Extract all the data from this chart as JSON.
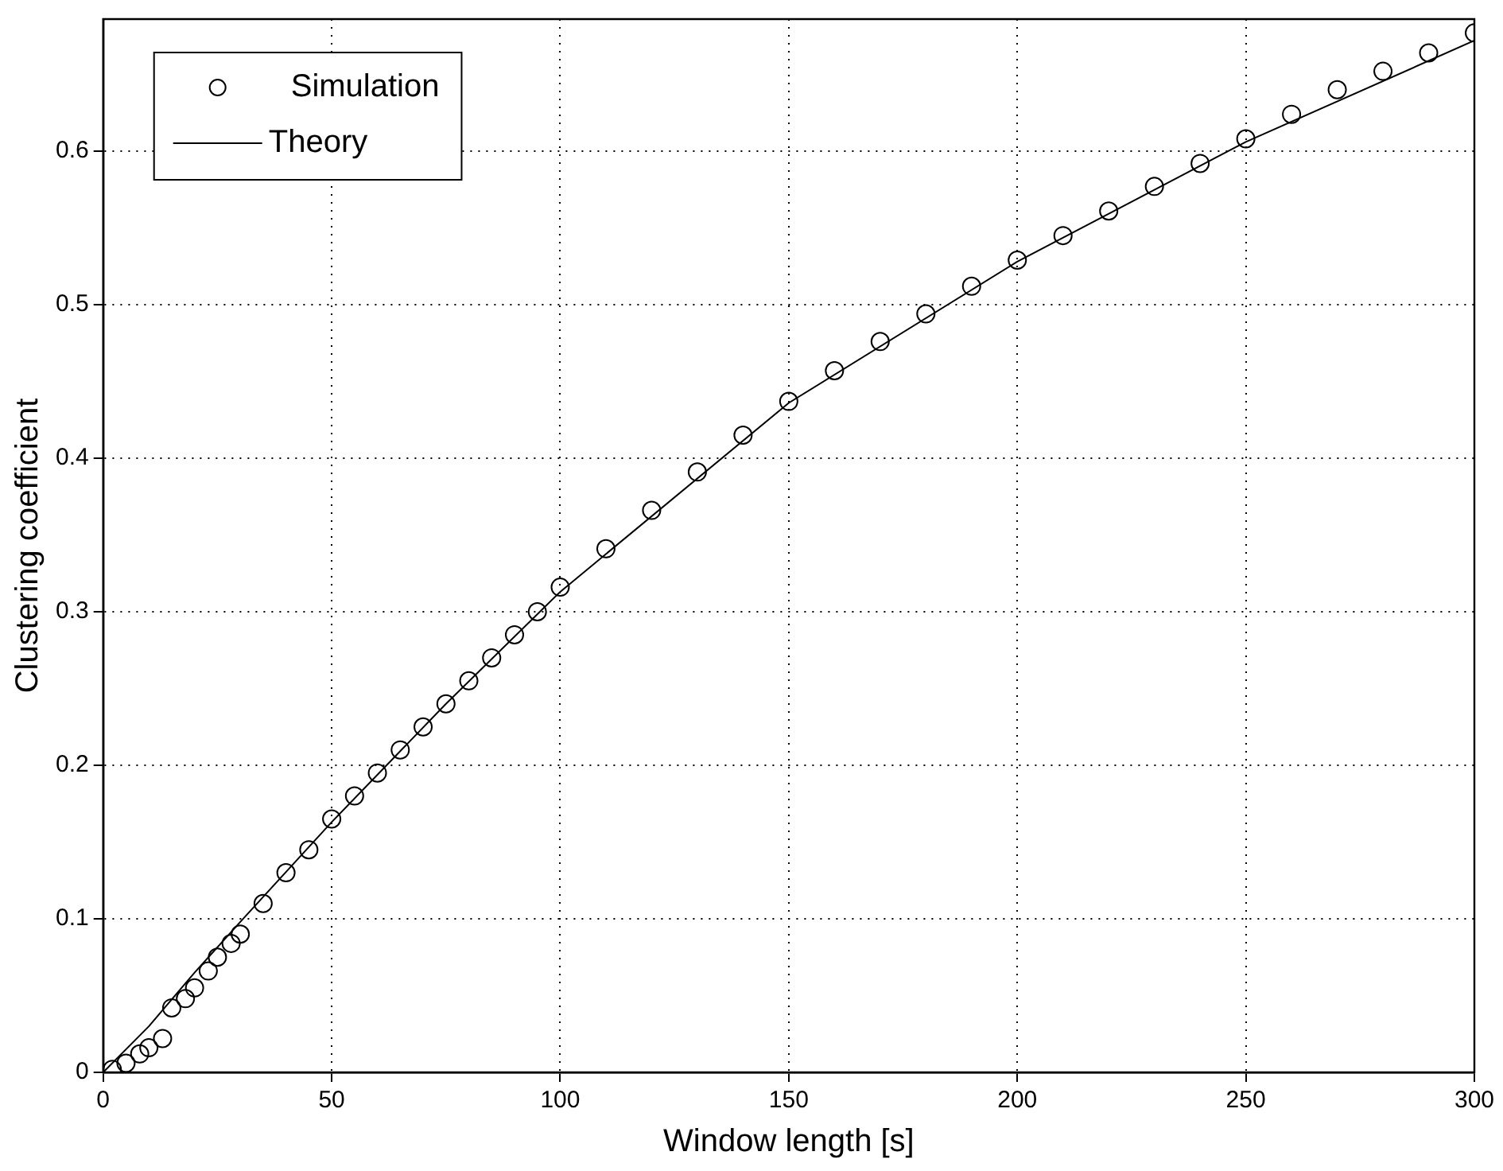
{
  "chart_data": {
    "type": "scatter",
    "xlabel": "Window length [s]",
    "ylabel": "Clustering coefficient",
    "xlim": [
      0,
      300
    ],
    "ylim": [
      0,
      0.686
    ],
    "xticks": [
      0,
      50,
      100,
      150,
      200,
      250,
      300
    ],
    "yticks": [
      0,
      0.1,
      0.2,
      0.3,
      0.4,
      0.5,
      0.6
    ],
    "grid": true,
    "legend": "top left",
    "marker": "circle",
    "series": [
      {
        "name": "Simulation",
        "color": "#000000",
        "x": [
          2,
          5,
          8,
          10,
          13,
          15,
          18,
          20,
          23,
          25,
          28,
          30,
          35,
          40,
          45,
          50,
          55,
          60,
          65,
          70,
          75,
          80,
          85,
          90,
          95,
          100,
          110,
          120,
          130,
          140,
          150,
          160,
          170,
          180,
          190,
          200,
          210,
          220,
          230,
          240,
          250,
          260,
          270,
          280,
          290,
          300
        ],
        "values": [
          0.002,
          0.006,
          0.012,
          0.016,
          0.022,
          0.042,
          0.048,
          0.055,
          0.066,
          0.075,
          0.084,
          0.09,
          0.11,
          0.13,
          0.145,
          0.165,
          0.18,
          0.195,
          0.21,
          0.225,
          0.24,
          0.255,
          0.27,
          0.285,
          0.3,
          0.316,
          0.341,
          0.366,
          0.391,
          0.415,
          0.437,
          0.457,
          0.476,
          0.494,
          0.512,
          0.529,
          0.545,
          0.561,
          0.577,
          0.592,
          0.608,
          0.624,
          0.64,
          0.652,
          0.664,
          0.677
        ]
      },
      {
        "name": "Theory",
        "type": "line",
        "marker": "none",
        "line_style": "solid",
        "color": "#000000",
        "x": [
          0,
          10,
          20,
          30,
          50,
          75,
          100,
          150,
          200,
          250,
          300
        ],
        "values": [
          0,
          0.03,
          0.065,
          0.098,
          0.163,
          0.24,
          0.313,
          0.436,
          0.528,
          0.606,
          0.672
        ]
      }
    ]
  }
}
